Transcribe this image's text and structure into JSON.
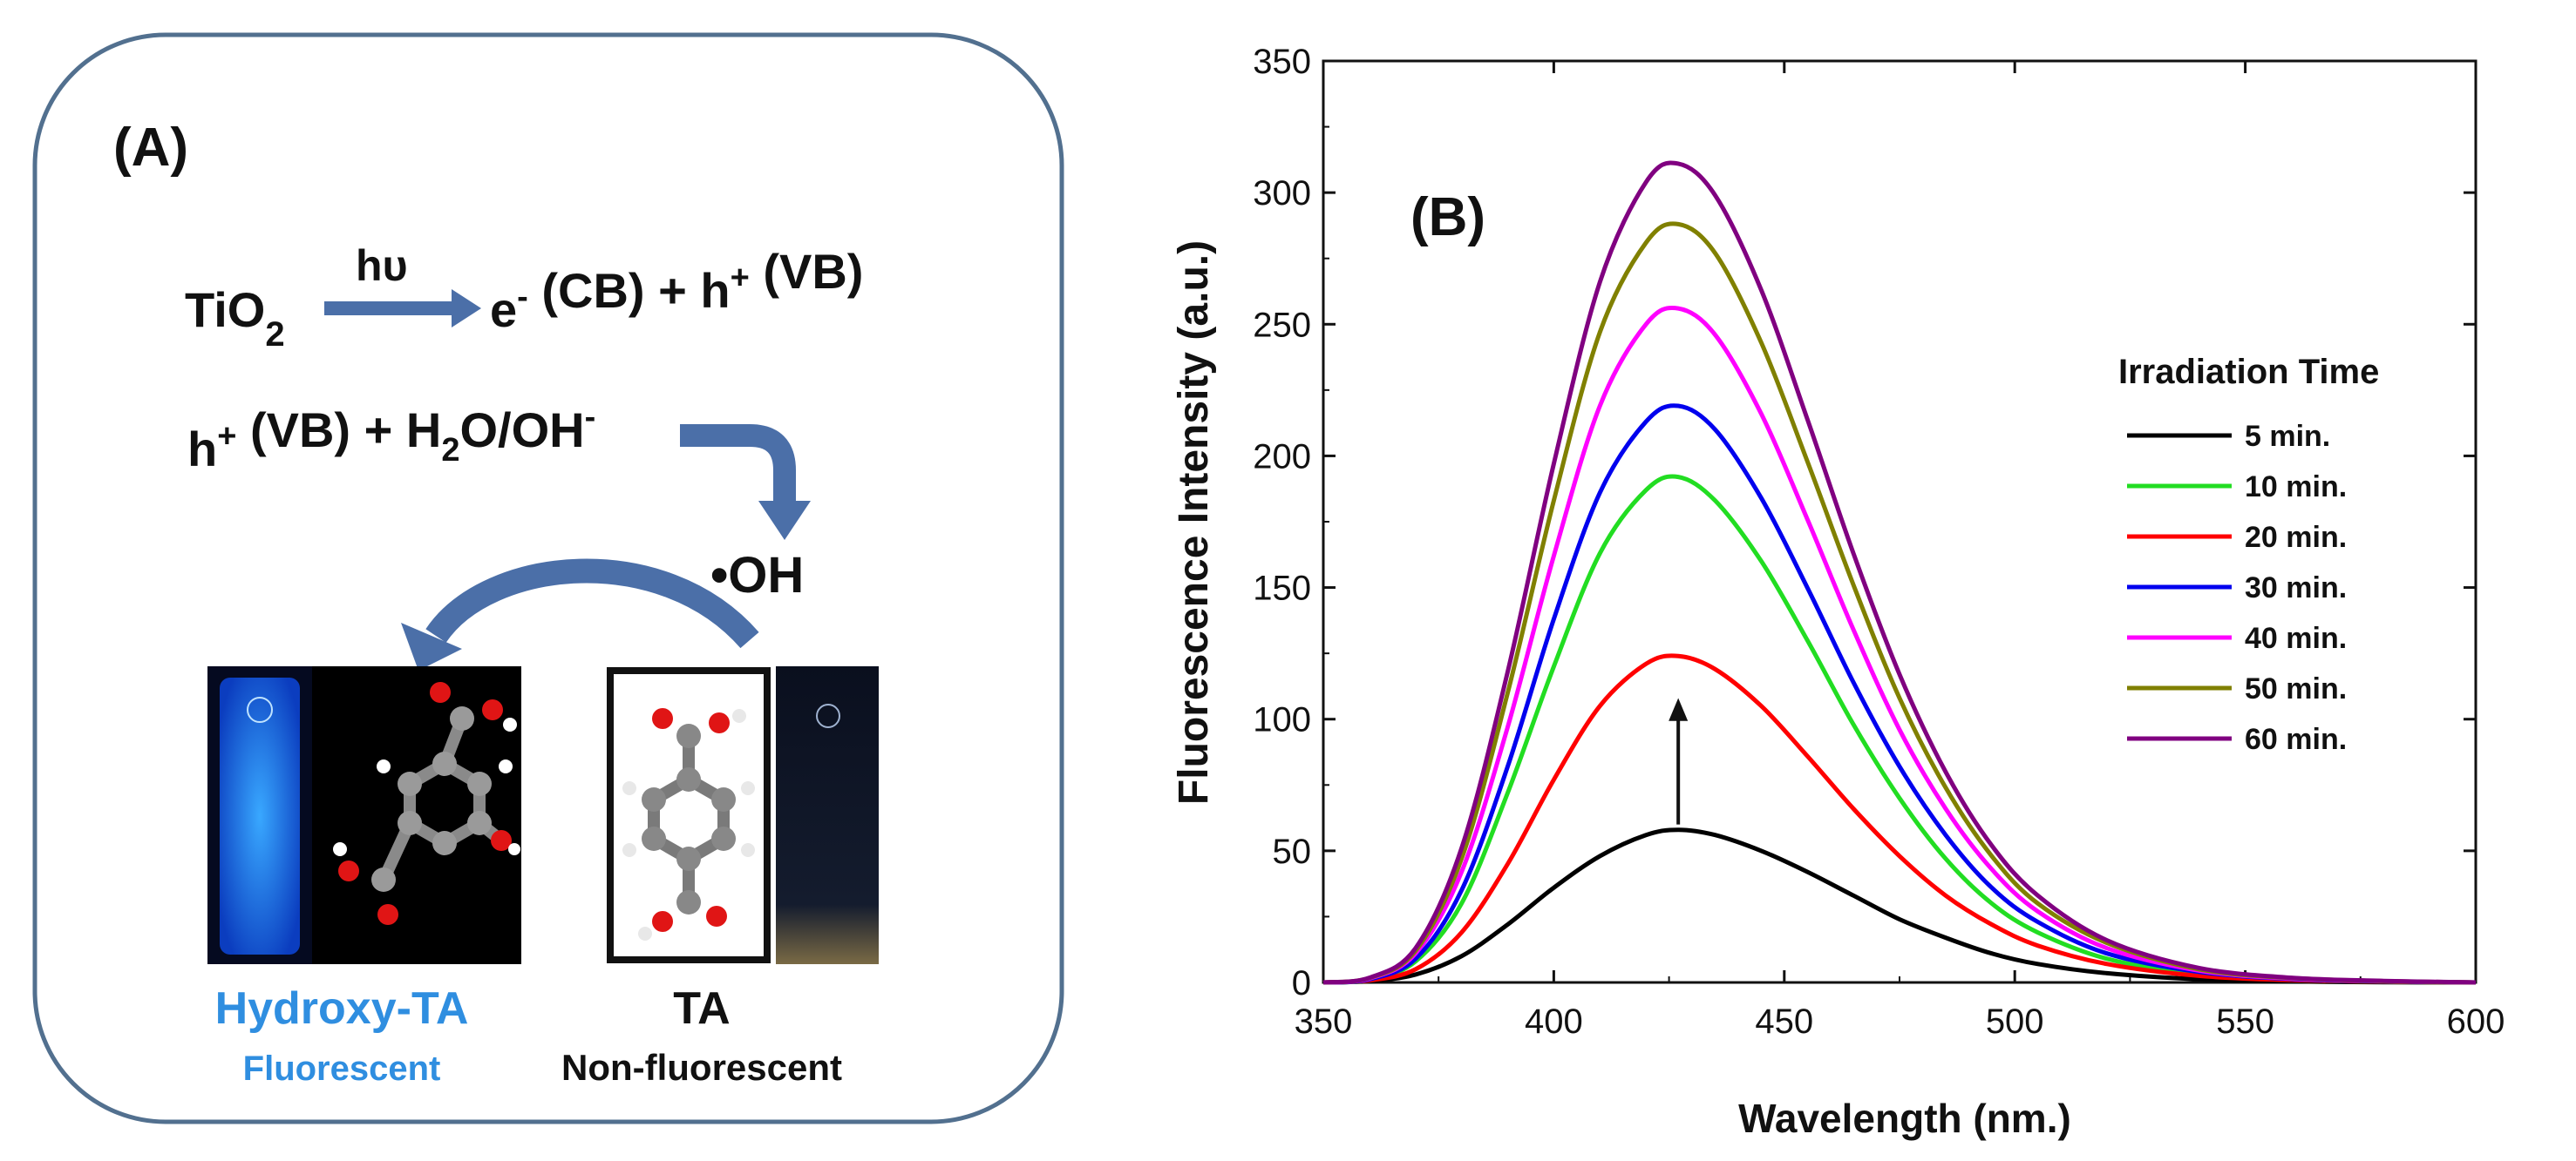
{
  "panel_a": {
    "label": "(A)",
    "eq1": {
      "reactant": "TiO",
      "reactant_sub": "2",
      "over_arrow": "hυ",
      "product": "e- (CB) + h+ (VB)"
    },
    "eq2": {
      "text": "h+ (VB) + H2O/OH-"
    },
    "radical": "•OH",
    "left_caption": {
      "name": "Hydroxy-TA",
      "property": "Fluorescent"
    },
    "right_caption": {
      "name": "TA",
      "property": "Non-fluorescent"
    }
  },
  "chart_data": {
    "type": "line",
    "panel_label": "(B)",
    "title": "",
    "xlabel": "Wavelength (nm.)",
    "ylabel": "Fluorescence Intensity (a.u.)",
    "xlim": [
      350,
      600
    ],
    "ylim": [
      0,
      350
    ],
    "xticks": [
      350,
      400,
      450,
      500,
      550,
      600
    ],
    "yticks": [
      0,
      50,
      100,
      150,
      200,
      250,
      300,
      350
    ],
    "legend_title": "Irradiation Time",
    "legend_position": "right",
    "annotation": "upward arrow at ~427 nm indicating increasing intensity with irradiation time",
    "x": [
      350,
      360,
      370,
      380,
      390,
      400,
      410,
      420,
      427,
      435,
      445,
      455,
      465,
      475,
      485,
      495,
      505,
      520,
      540,
      560,
      580,
      600
    ],
    "series": [
      {
        "name": "5 min.",
        "color": "#000000",
        "values": [
          0,
          0.5,
          3,
          10,
          22,
          36,
          48,
          56,
          58,
          56,
          50,
          42,
          33,
          24,
          17,
          11,
          7,
          3.5,
          1.2,
          0.4,
          0.1,
          0
        ]
      },
      {
        "name": "10 min.",
        "color": "#22dd22",
        "values": [
          0,
          1,
          8,
          30,
          72,
          120,
          163,
          187,
          192,
          183,
          160,
          130,
          98,
          70,
          47,
          30,
          19,
          9,
          3,
          1,
          0.3,
          0
        ]
      },
      {
        "name": "20 min.",
        "color": "#ff0000",
        "values": [
          0,
          0.8,
          5,
          19,
          45,
          77,
          105,
          121,
          124,
          119,
          105,
          86,
          66,
          48,
          33,
          22,
          14,
          7,
          2.5,
          0.9,
          0.3,
          0
        ]
      },
      {
        "name": "30 min.",
        "color": "#0000ee",
        "values": [
          0,
          1.2,
          9,
          35,
          82,
          138,
          186,
          213,
          219,
          210,
          184,
          150,
          114,
          82,
          56,
          36,
          23,
          11,
          4,
          1.3,
          0.4,
          0
        ]
      },
      {
        "name": "40 min.",
        "color": "#ff00ff",
        "values": [
          0,
          1.5,
          11,
          42,
          97,
          162,
          219,
          250,
          256,
          246,
          216,
          176,
          134,
          96,
          66,
          43,
          27,
          13,
          4.5,
          1.5,
          0.5,
          0
        ]
      },
      {
        "name": "50 min.",
        "color": "#808000",
        "values": [
          0,
          1.7,
          12,
          47,
          110,
          183,
          247,
          281,
          288,
          277,
          243,
          198,
          151,
          108,
          74,
          48,
          30,
          15,
          5,
          1.7,
          0.5,
          0
        ]
      },
      {
        "name": "60 min.",
        "color": "#800080",
        "values": [
          0,
          1.8,
          13,
          51,
          118,
          197,
          266,
          304,
          311,
          299,
          263,
          214,
          163,
          117,
          80,
          52,
          33,
          16,
          5.5,
          1.8,
          0.6,
          0
        ]
      }
    ]
  }
}
